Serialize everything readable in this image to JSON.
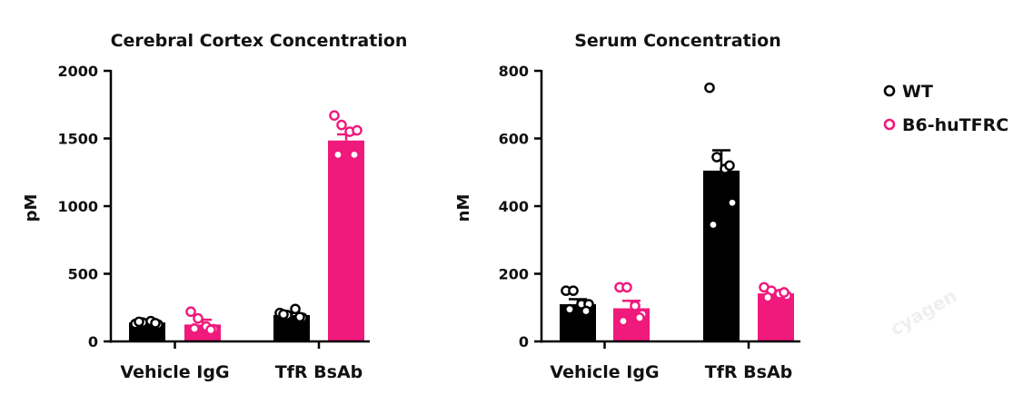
{
  "colors": {
    "WT": "#000000",
    "B6-huTFRC": "#f0197c"
  },
  "legend": [
    {
      "label": "WT",
      "color": "#000000"
    },
    {
      "label": "B6-huTFRC",
      "color": "#f0197c"
    }
  ],
  "watermark": "cyagen",
  "chart_data": [
    {
      "type": "bar",
      "title": "Cerebral Cortex Concentration",
      "xlabel": "",
      "ylabel": "pM",
      "ylim": [
        0,
        2000
      ],
      "yticks": [
        0,
        500,
        1000,
        1500,
        2000
      ],
      "categories": [
        "Vehicle IgG",
        "TfR BsAb"
      ],
      "series": [
        {
          "name": "WT",
          "values": [
            140,
            195
          ],
          "errors": [
            12,
            15
          ],
          "points": [
            [
              130,
              140,
              150,
              125,
              145,
              135
            ],
            [
              210,
              195,
              240,
              175,
              200,
              180
            ]
          ]
        },
        {
          "name": "B6-huTFRC",
          "values": [
            125,
            1485
          ],
          "errors": [
            35,
            45
          ],
          "points": [
            [
              220,
              170,
              110,
              90,
              95,
              85
            ],
            [
              1670,
              1600,
              1550,
              1560,
              1380,
              1380
            ]
          ]
        }
      ]
    },
    {
      "type": "bar",
      "title": "Serum Concentration",
      "xlabel": "",
      "ylabel": "nM",
      "ylim": [
        0,
        800
      ],
      "yticks": [
        0,
        200,
        400,
        600,
        800
      ],
      "categories": [
        "Vehicle IgG",
        "TfR BsAb"
      ],
      "series": [
        {
          "name": "WT",
          "values": [
            110,
            505
          ],
          "errors": [
            15,
            60
          ],
          "points": [
            [
              150,
              150,
              110,
              110,
              95,
              90
            ],
            [
              750,
              545,
              510,
              410,
              345,
              520
            ]
          ]
        },
        {
          "name": "B6-huTFRC",
          "values": [
            98,
            142
          ],
          "errors": [
            22,
            8
          ],
          "points": [
            [
              160,
              160,
              105,
              80,
              60,
              70
            ],
            [
              160,
              150,
              140,
              135,
              130,
              145
            ]
          ]
        }
      ]
    }
  ]
}
